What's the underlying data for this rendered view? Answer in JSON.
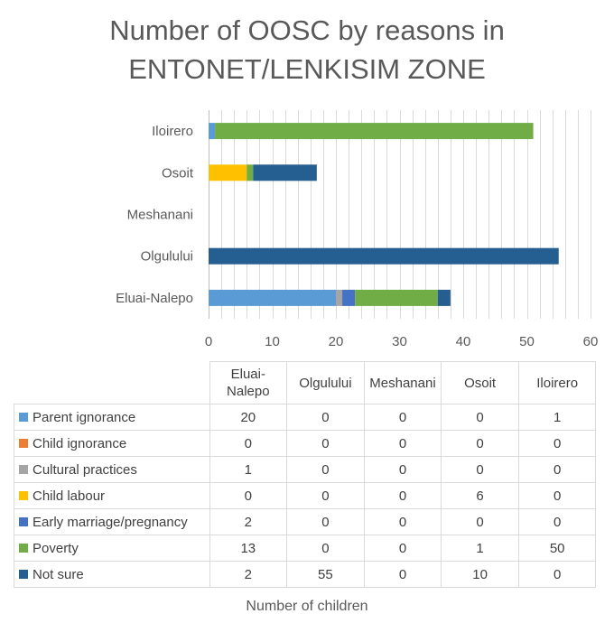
{
  "title_lines": [
    "Number of OOSC by reasons in",
    "ENTONET/LENKISIM ZONE"
  ],
  "chart_data": {
    "type": "bar",
    "orientation": "horizontal",
    "stacked": true,
    "title": "Number of OOSC by reasons in ENTONET/LENKISIM ZONE",
    "xlabel": "Number of children",
    "ylabel": "",
    "xlim": [
      0,
      60
    ],
    "x_ticks": [
      0,
      10,
      20,
      30,
      40,
      50,
      60
    ],
    "grid": true,
    "categories": [
      "Eluai-Nalepo",
      "Olgulului",
      "Meshanani",
      "Osoit",
      "Iloirero"
    ],
    "series": [
      {
        "name": "Parent ignorance",
        "color": "#5b9bd5",
        "values": [
          20,
          0,
          0,
          0,
          1
        ]
      },
      {
        "name": "Child ignorance",
        "color": "#ed7d31",
        "values": [
          0,
          0,
          0,
          0,
          0
        ]
      },
      {
        "name": "Cultural practices",
        "color": "#a5a5a5",
        "values": [
          1,
          0,
          0,
          0,
          0
        ]
      },
      {
        "name": "Child labour",
        "color": "#ffc000",
        "values": [
          0,
          0,
          0,
          6,
          0
        ]
      },
      {
        "name": "Early marriage/pregnancy",
        "color": "#4472c4",
        "values": [
          2,
          0,
          0,
          0,
          0
        ]
      },
      {
        "name": "Poverty",
        "color": "#70ad47",
        "values": [
          13,
          0,
          0,
          1,
          50
        ]
      },
      {
        "name": "Not sure",
        "color": "#255e91",
        "values": [
          2,
          55,
          0,
          10,
          0
        ]
      }
    ],
    "table_headers": [
      [
        "Eluai-",
        "Nalepo"
      ],
      [
        "Olgulului"
      ],
      [
        "Meshanani"
      ],
      [
        "Osoit"
      ],
      [
        "Iloirero"
      ]
    ],
    "legend": "data-table"
  }
}
